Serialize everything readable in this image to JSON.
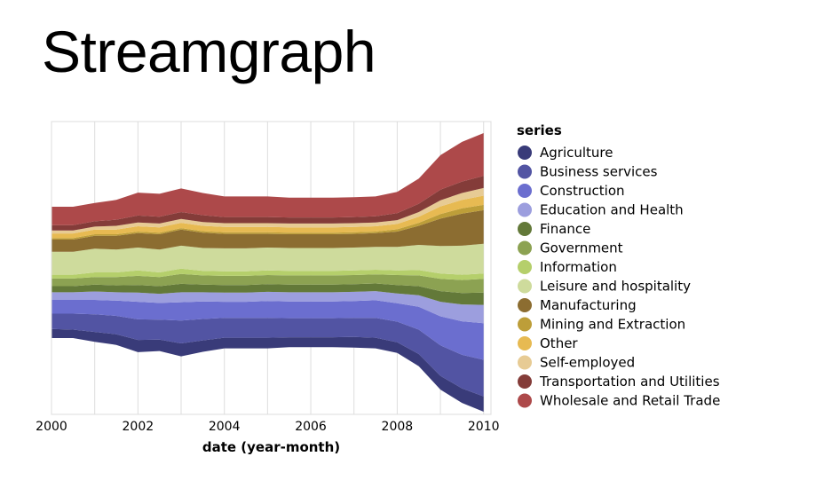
{
  "title": "Streamgraph",
  "chart_data": {
    "type": "area",
    "layout": "streamgraph",
    "xlabel": "date (year-month)",
    "ylabel": "",
    "x_ticks": [
      "2000",
      "2002",
      "2004",
      "2006",
      "2008",
      "2010"
    ],
    "x_range": [
      2000.0,
      2010.17
    ],
    "grid": true,
    "legend": {
      "title": "series",
      "position": "right"
    },
    "x": [
      2000.0,
      2000.5,
      2001.0,
      2001.5,
      2002.0,
      2002.5,
      2003.0,
      2003.5,
      2004.0,
      2004.5,
      2005.0,
      2005.5,
      2006.0,
      2006.5,
      2007.0,
      2007.5,
      2008.0,
      2008.5,
      2009.0,
      2009.5,
      2010.0
    ],
    "series": [
      {
        "name": "Agriculture",
        "color": "#393b79",
        "values": [
          12,
          11,
          13,
          14,
          16,
          15,
          17,
          15,
          14,
          14,
          14,
          13,
          13,
          13,
          14,
          14,
          14,
          16,
          18,
          19,
          20
        ]
      },
      {
        "name": "Business services",
        "color": "#5254a3",
        "values": [
          20,
          21,
          23,
          24,
          27,
          26,
          30,
          28,
          26,
          26,
          26,
          25,
          25,
          25,
          25,
          26,
          27,
          32,
          40,
          44,
          48
        ]
      },
      {
        "name": "Construction",
        "color": "#6b6ecf",
        "values": [
          18,
          18,
          19,
          20,
          23,
          22,
          24,
          23,
          21,
          21,
          22,
          22,
          22,
          22,
          22,
          23,
          24,
          30,
          38,
          44,
          48
        ]
      },
      {
        "name": "Education and Health",
        "color": "#9c9ede",
        "values": [
          10,
          10,
          11,
          11,
          12,
          12,
          13,
          12,
          12,
          12,
          12,
          12,
          12,
          12,
          12,
          12,
          13,
          15,
          19,
          22,
          24
        ]
      },
      {
        "name": "Finance",
        "color": "#637939",
        "values": [
          8,
          8,
          9,
          9,
          10,
          10,
          11,
          10,
          10,
          10,
          10,
          10,
          10,
          10,
          10,
          10,
          11,
          12,
          14,
          15,
          16
        ]
      },
      {
        "name": "Government",
        "color": "#8ca252",
        "values": [
          10,
          10,
          10,
          11,
          12,
          12,
          13,
          12,
          12,
          12,
          12,
          12,
          12,
          12,
          12,
          12,
          13,
          14,
          16,
          17,
          18
        ]
      },
      {
        "name": "Information",
        "color": "#b5cf6b",
        "values": [
          5,
          5,
          6,
          6,
          7,
          6,
          7,
          6,
          6,
          6,
          6,
          6,
          6,
          6,
          6,
          6,
          6,
          7,
          7,
          7,
          7
        ]
      },
      {
        "name": "Leisure and hospitality",
        "color": "#cedb9c",
        "values": [
          30,
          30,
          31,
          30,
          30,
          30,
          30,
          30,
          30,
          30,
          30,
          30,
          30,
          30,
          30,
          30,
          31,
          33,
          36,
          38,
          39
        ]
      },
      {
        "name": "Manufacturing",
        "color": "#8c6d31",
        "values": [
          16,
          16,
          17,
          18,
          19,
          20,
          21,
          20,
          19,
          19,
          18,
          18,
          18,
          18,
          18,
          18,
          20,
          25,
          36,
          42,
          44
        ]
      },
      {
        "name": "Mining and Extraction",
        "color": "#bd9e39",
        "values": [
          2,
          2,
          2,
          2,
          2,
          2,
          2,
          2,
          2,
          2,
          2,
          2,
          2,
          2,
          2,
          2,
          3,
          4,
          6,
          7,
          7
        ]
      },
      {
        "name": "Other",
        "color": "#e7ba52",
        "values": [
          6,
          6,
          6,
          6,
          7,
          7,
          7,
          7,
          7,
          7,
          7,
          7,
          7,
          7,
          7,
          7,
          7,
          8,
          10,
          11,
          12
        ]
      },
      {
        "name": "Self-employed",
        "color": "#e7cb94",
        "values": [
          4,
          4,
          4,
          5,
          5,
          5,
          5,
          5,
          5,
          5,
          5,
          5,
          5,
          5,
          5,
          5,
          5,
          6,
          8,
          9,
          10
        ]
      },
      {
        "name": "Transportation and Utilities",
        "color": "#843c39",
        "values": [
          7,
          7,
          7,
          8,
          9,
          9,
          9,
          9,
          8,
          8,
          8,
          8,
          8,
          8,
          8,
          8,
          9,
          11,
          14,
          15,
          16
        ]
      },
      {
        "name": "Wholesale and Retail Trade",
        "color": "#ad494a",
        "values": [
          24,
          24,
          24,
          26,
          30,
          30,
          31,
          29,
          27,
          27,
          27,
          26,
          26,
          26,
          26,
          26,
          28,
          33,
          45,
          52,
          56
        ]
      }
    ]
  }
}
